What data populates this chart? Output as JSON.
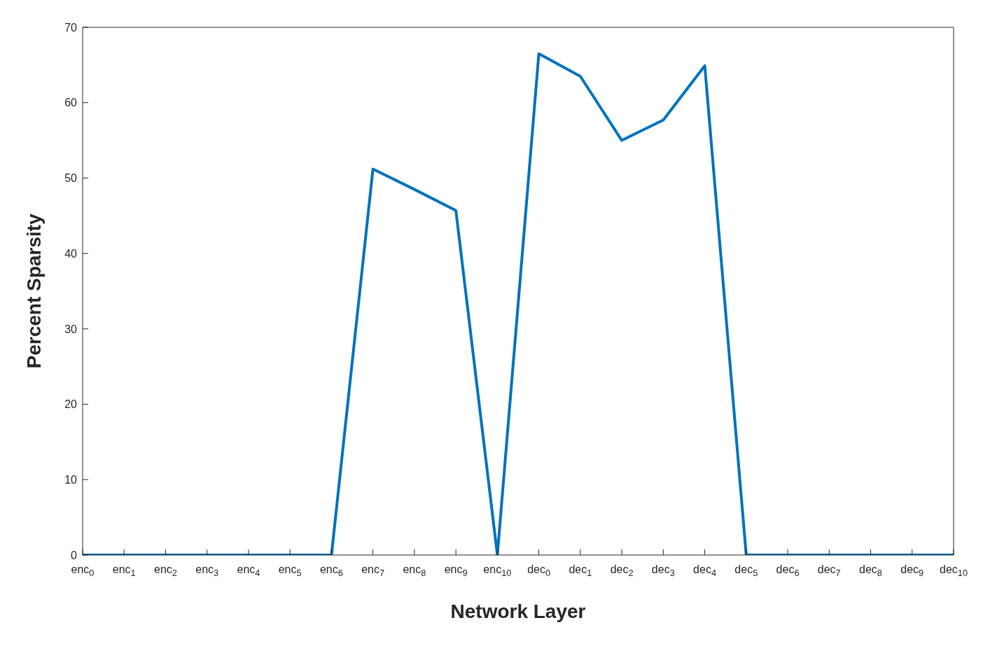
{
  "chart_data": {
    "type": "line",
    "xlabel": "Network Layer",
    "ylabel": "Percent Sparsity",
    "categories": [
      "enc$_{0}$",
      "enc$_{1}$",
      "enc$_{2}$",
      "enc$_{3}$",
      "enc$_{4}$",
      "enc$_{5}$",
      "enc$_{6}$",
      "enc$_{7}$",
      "enc$_{8}$",
      "enc$_{9}$",
      "enc$_{10}$",
      "dec$_{0}$",
      "dec$_{1}$",
      "dec$_{2}$",
      "dec$_{3}$",
      "dec$_{4}$",
      "dec$_{5}$",
      "dec$_{6}$",
      "dec$_{7}$",
      "dec$_{8}$",
      "dec$_{9}$",
      "dec$_{10}$"
    ],
    "series": [
      {
        "color": "#0072bd",
        "values": [
          0,
          0,
          0,
          0,
          0,
          0,
          0,
          51.2,
          48.5,
          45.7,
          0,
          66.5,
          63.5,
          55,
          57.7,
          64.9,
          0,
          0,
          0,
          0,
          0,
          0
        ]
      }
    ],
    "ylim": [
      0,
      70
    ],
    "yticks": [
      0,
      10,
      20,
      30,
      40,
      50,
      60,
      70
    ],
    "grid": false,
    "legend": false,
    "marker": "none",
    "line_style": "solid"
  }
}
